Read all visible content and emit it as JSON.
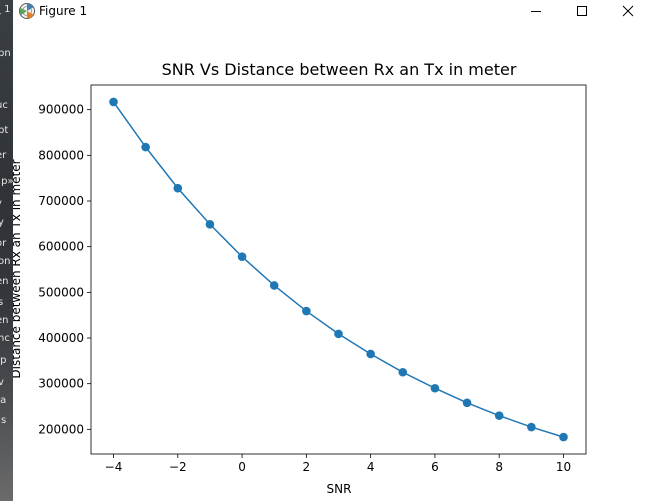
{
  "window": {
    "title": "Figure 1",
    "controls": [
      "minimize",
      "maximize",
      "close"
    ]
  },
  "background_fragments": [
    "_ 1",
    "bn",
    "uc",
    "pt",
    "er",
    ".p»",
    "y",
    "y",
    "or",
    "on",
    "en",
    "s",
    "en",
    "nc",
    "rp",
    "v",
    "ra",
    "Js"
  ],
  "chart_data": {
    "type": "line",
    "title": "SNR Vs Distance between Rx an Tx in meter",
    "xlabel": "SNR",
    "ylabel": "Distance between Rx an Tx in meter",
    "x": [
      -4,
      -3,
      -2,
      -1,
      0,
      1,
      2,
      3,
      4,
      5,
      6,
      7,
      8,
      9,
      10
    ],
    "series": [
      {
        "values": [
          917000,
          818000,
          728000,
          649000,
          578000,
          515000,
          459000,
          409000,
          365000,
          325000,
          290000,
          258000,
          230000,
          205000,
          183000
        ],
        "color": "#1f77b4",
        "marker": "circle"
      }
    ],
    "xlim": [
      -4.7,
      10.7
    ],
    "ylim": [
      146000,
      954000
    ],
    "xticks": [
      -4,
      -2,
      0,
      2,
      4,
      6,
      8,
      10
    ],
    "xtick_labels": [
      "−4",
      "−2",
      "0",
      "2",
      "4",
      "6",
      "8",
      "10"
    ],
    "yticks": [
      200000,
      300000,
      400000,
      500000,
      600000,
      700000,
      800000,
      900000
    ],
    "ytick_labels": [
      "200000",
      "300000",
      "400000",
      "500000",
      "600000",
      "700000",
      "800000",
      "900000"
    ],
    "grid": false,
    "legend": "none"
  }
}
